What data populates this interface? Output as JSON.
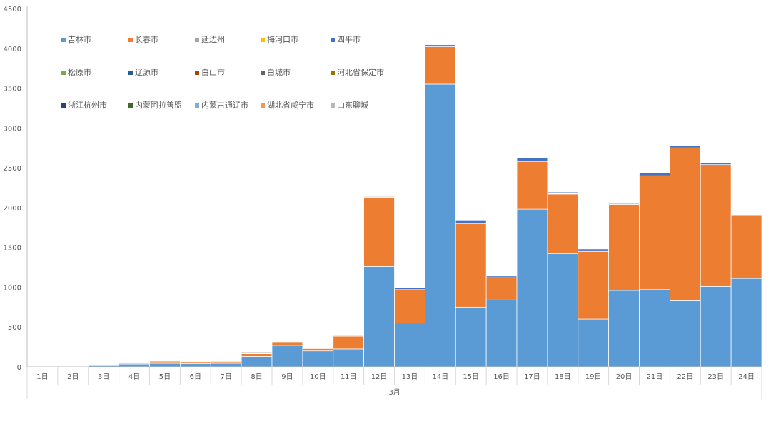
{
  "chart_data": {
    "type": "bar",
    "stacked": true,
    "title": "",
    "xlabel": "",
    "ylabel": "",
    "ylim": [
      0,
      4500
    ],
    "yticks": [
      0,
      500,
      1000,
      1500,
      2000,
      2500,
      3000,
      3500,
      4000,
      4500
    ],
    "grid": false,
    "legend_position": "top-left, inside plot",
    "group_label": "3月",
    "categories": [
      "1日",
      "2日",
      "3日",
      "4日",
      "5日",
      "6日",
      "7日",
      "8日",
      "9日",
      "10日",
      "11日",
      "12日",
      "13日",
      "14日",
      "15日",
      "16日",
      "17日",
      "18日",
      "19日",
      "20日",
      "21日",
      "22日",
      "23日",
      "24日"
    ],
    "series": [
      {
        "name": "吉林市",
        "color": "#5B9BD5",
        "values": [
          3,
          5,
          15,
          35,
          45,
          40,
          45,
          130,
          270,
          200,
          225,
          1260,
          550,
          3550,
          750,
          840,
          1980,
          1420,
          600,
          960,
          970,
          830,
          1010,
          1110
        ]
      },
      {
        "name": "长春市",
        "color": "#ED7D31",
        "values": [
          0,
          0,
          0,
          10,
          15,
          15,
          20,
          35,
          45,
          30,
          160,
          870,
          420,
          470,
          1050,
          280,
          600,
          750,
          850,
          1080,
          1430,
          1920,
          1530,
          790
        ]
      },
      {
        "name": "延边州",
        "color": "#A5A5A5",
        "values": [
          0,
          0,
          0,
          0,
          0,
          0,
          0,
          5,
          5,
          5,
          10,
          10,
          0,
          0,
          0,
          0,
          0,
          5,
          0,
          0,
          0,
          0,
          0,
          0
        ]
      },
      {
        "name": "梅河口市",
        "color": "#FFC000",
        "values": [
          0,
          0,
          0,
          0,
          0,
          0,
          10,
          0,
          5,
          0,
          5,
          0,
          0,
          0,
          0,
          0,
          0,
          0,
          0,
          0,
          0,
          0,
          0,
          0
        ]
      },
      {
        "name": "四平市",
        "color": "#4472C4",
        "values": [
          0,
          0,
          0,
          0,
          0,
          0,
          0,
          0,
          0,
          0,
          0,
          15,
          20,
          25,
          35,
          20,
          50,
          20,
          30,
          10,
          35,
          25,
          20,
          10
        ]
      },
      {
        "name": "松原市",
        "color": "#70AD47",
        "values": [
          0,
          0,
          0,
          0,
          0,
          0,
          0,
          0,
          0,
          0,
          0,
          0,
          0,
          0,
          0,
          0,
          0,
          0,
          0,
          0,
          0,
          0,
          0,
          0
        ]
      },
      {
        "name": "辽源市",
        "color": "#255E91",
        "values": [
          0,
          0,
          0,
          0,
          0,
          0,
          0,
          0,
          0,
          0,
          0,
          0,
          0,
          0,
          0,
          0,
          0,
          0,
          0,
          0,
          0,
          0,
          0,
          0
        ]
      },
      {
        "name": "白山市",
        "color": "#9E480E",
        "values": [
          0,
          0,
          0,
          0,
          0,
          0,
          0,
          0,
          0,
          0,
          0,
          0,
          0,
          0,
          0,
          0,
          0,
          0,
          0,
          0,
          0,
          0,
          0,
          0
        ]
      },
      {
        "name": "白城市",
        "color": "#636363",
        "values": [
          0,
          0,
          0,
          0,
          10,
          0,
          0,
          10,
          0,
          0,
          0,
          0,
          0,
          0,
          0,
          0,
          0,
          0,
          0,
          0,
          0,
          0,
          0,
          0
        ]
      },
      {
        "name": "河北省保定市",
        "color": "#997300",
        "values": [
          0,
          0,
          0,
          0,
          0,
          0,
          0,
          0,
          0,
          0,
          0,
          0,
          0,
          0,
          0,
          0,
          0,
          0,
          0,
          0,
          0,
          0,
          0,
          0
        ]
      },
      {
        "name": "浙江杭州市",
        "color": "#264478",
        "values": [
          0,
          0,
          0,
          0,
          0,
          0,
          0,
          0,
          0,
          0,
          0,
          0,
          0,
          0,
          0,
          0,
          0,
          0,
          0,
          0,
          0,
          0,
          0,
          0
        ]
      },
      {
        "name": "内蒙阿拉善盟",
        "color": "#43682B",
        "values": [
          0,
          0,
          0,
          0,
          0,
          0,
          0,
          5,
          0,
          0,
          0,
          0,
          0,
          0,
          0,
          0,
          0,
          0,
          0,
          0,
          0,
          0,
          0,
          0
        ]
      },
      {
        "name": "内蒙古通辽市",
        "color": "#7CAFDD",
        "values": [
          0,
          0,
          0,
          0,
          0,
          0,
          0,
          0,
          0,
          0,
          0,
          0,
          0,
          0,
          0,
          0,
          0,
          0,
          0,
          0,
          0,
          0,
          0,
          0
        ]
      },
      {
        "name": "湖北省咸宁市",
        "color": "#F1975A",
        "values": [
          0,
          0,
          0,
          0,
          0,
          0,
          0,
          0,
          0,
          0,
          0,
          0,
          0,
          0,
          0,
          0,
          0,
          0,
          0,
          0,
          0,
          0,
          0,
          0
        ]
      },
      {
        "name": "山东聊城",
        "color": "#B7B7B7",
        "values": [
          0,
          0,
          0,
          0,
          0,
          0,
          0,
          0,
          0,
          0,
          0,
          0,
          0,
          0,
          0,
          0,
          0,
          0,
          0,
          0,
          0,
          0,
          0,
          0
        ]
      }
    ]
  }
}
